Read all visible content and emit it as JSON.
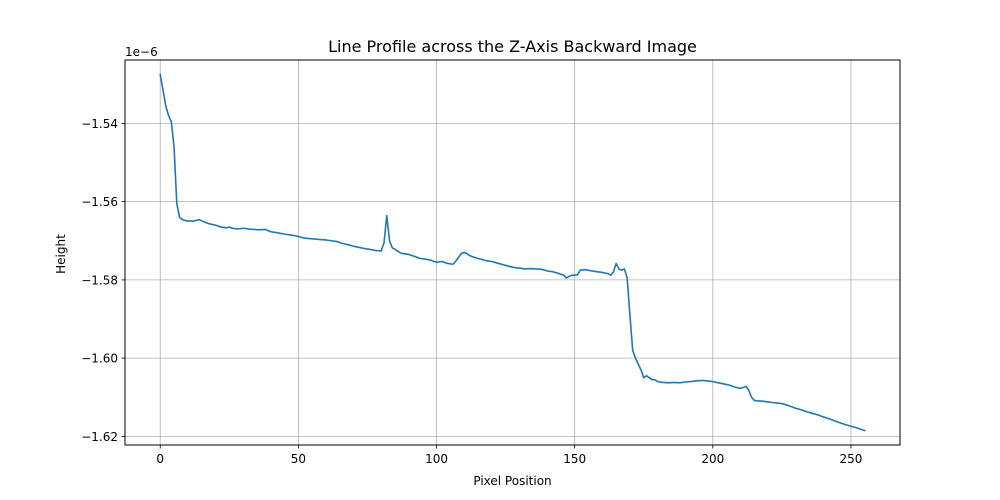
{
  "chart_data": {
    "type": "line",
    "title": "Line Profile across the Z-Axis Backward Image",
    "xlabel": "Pixel Position",
    "ylabel": "Height",
    "y_offset_label": "1e−6",
    "xlim": [
      -12.75,
      267.75
    ],
    "ylim": [
      -1.6222,
      -1.5238
    ],
    "grid": true,
    "x_ticks": [
      0,
      50,
      100,
      150,
      200,
      250
    ],
    "x_tick_labels": [
      "0",
      "50",
      "100",
      "150",
      "200",
      "250"
    ],
    "y_ticks": [
      -1.54,
      -1.56,
      -1.58,
      -1.6,
      -1.62
    ],
    "y_tick_labels": [
      "−1.54",
      "−1.56",
      "−1.58",
      "−1.60",
      "−1.62"
    ],
    "series": [
      {
        "color": "#1f77b4",
        "points": [
          [
            0,
            -1.5275
          ],
          [
            1,
            -1.5315
          ],
          [
            2,
            -1.5355
          ],
          [
            3,
            -1.538
          ],
          [
            4,
            -1.5395
          ],
          [
            5,
            -1.546
          ],
          [
            6,
            -1.5605
          ],
          [
            7,
            -1.564
          ],
          [
            8,
            -1.5646
          ],
          [
            9,
            -1.5648
          ],
          [
            10,
            -1.565
          ],
          [
            11,
            -1.5649
          ],
          [
            12,
            -1.565
          ],
          [
            13,
            -1.5648
          ],
          [
            14,
            -1.5646
          ],
          [
            15,
            -1.5649
          ],
          [
            16,
            -1.5652
          ],
          [
            17,
            -1.5655
          ],
          [
            18,
            -1.5657
          ],
          [
            20,
            -1.566
          ],
          [
            22,
            -1.5665
          ],
          [
            24,
            -1.5667
          ],
          [
            25,
            -1.5665
          ],
          [
            26,
            -1.5668
          ],
          [
            28,
            -1.567
          ],
          [
            30,
            -1.5668
          ],
          [
            32,
            -1.567
          ],
          [
            34,
            -1.5671
          ],
          [
            36,
            -1.5672
          ],
          [
            38,
            -1.5671
          ],
          [
            40,
            -1.5677
          ],
          [
            42,
            -1.5679
          ],
          [
            45,
            -1.5683
          ],
          [
            48,
            -1.5686
          ],
          [
            50,
            -1.5689
          ],
          [
            52,
            -1.5693
          ],
          [
            55,
            -1.5695
          ],
          [
            58,
            -1.5697
          ],
          [
            60,
            -1.5698
          ],
          [
            62,
            -1.57
          ],
          [
            64,
            -1.5702
          ],
          [
            66,
            -1.5707
          ],
          [
            68,
            -1.571
          ],
          [
            70,
            -1.5714
          ],
          [
            72,
            -1.5717
          ],
          [
            74,
            -1.572
          ],
          [
            76,
            -1.5722
          ],
          [
            78,
            -1.5725
          ],
          [
            80,
            -1.5726
          ],
          [
            81,
            -1.5705
          ],
          [
            82,
            -1.5636
          ],
          [
            83,
            -1.57
          ],
          [
            84,
            -1.5718
          ],
          [
            85,
            -1.5722
          ],
          [
            86,
            -1.5727
          ],
          [
            87,
            -1.5731
          ],
          [
            88,
            -1.5733
          ],
          [
            90,
            -1.5735
          ],
          [
            92,
            -1.574
          ],
          [
            94,
            -1.5745
          ],
          [
            96,
            -1.5747
          ],
          [
            98,
            -1.575
          ],
          [
            100,
            -1.5755
          ],
          [
            102,
            -1.5753
          ],
          [
            104,
            -1.5758
          ],
          [
            106,
            -1.576
          ],
          [
            107,
            -1.5752
          ],
          [
            108,
            -1.5742
          ],
          [
            109,
            -1.5732
          ],
          [
            110,
            -1.573
          ],
          [
            111,
            -1.5733
          ],
          [
            112,
            -1.5738
          ],
          [
            114,
            -1.5743
          ],
          [
            116,
            -1.5747
          ],
          [
            118,
            -1.5751
          ],
          [
            120,
            -1.5753
          ],
          [
            122,
            -1.5757
          ],
          [
            124,
            -1.5761
          ],
          [
            126,
            -1.5765
          ],
          [
            128,
            -1.5768
          ],
          [
            130,
            -1.577
          ],
          [
            132,
            -1.5772
          ],
          [
            134,
            -1.5771
          ],
          [
            136,
            -1.5772
          ],
          [
            138,
            -1.5773
          ],
          [
            140,
            -1.5777
          ],
          [
            142,
            -1.5779
          ],
          [
            144,
            -1.5783
          ],
          [
            146,
            -1.5788
          ],
          [
            147,
            -1.5795
          ],
          [
            148,
            -1.5791
          ],
          [
            149,
            -1.5788
          ],
          [
            150,
            -1.5788
          ],
          [
            151,
            -1.5787
          ],
          [
            152,
            -1.5775
          ],
          [
            154,
            -1.5774
          ],
          [
            156,
            -1.5777
          ],
          [
            158,
            -1.5779
          ],
          [
            160,
            -1.5781
          ],
          [
            162,
            -1.5784
          ],
          [
            163,
            -1.5788
          ],
          [
            164,
            -1.578
          ],
          [
            165,
            -1.5758
          ],
          [
            166,
            -1.5772
          ],
          [
            167,
            -1.5775
          ],
          [
            168,
            -1.5772
          ],
          [
            169,
            -1.5795
          ],
          [
            170,
            -1.589
          ],
          [
            171,
            -1.598
          ],
          [
            172,
            -1.6
          ],
          [
            173,
            -1.6015
          ],
          [
            174,
            -1.603
          ],
          [
            175,
            -1.605
          ],
          [
            176,
            -1.6045
          ],
          [
            177,
            -1.605
          ],
          [
            178,
            -1.6055
          ],
          [
            179,
            -1.6055
          ],
          [
            180,
            -1.606
          ],
          [
            182,
            -1.6062
          ],
          [
            184,
            -1.6063
          ],
          [
            186,
            -1.6062
          ],
          [
            188,
            -1.6063
          ],
          [
            190,
            -1.6061
          ],
          [
            192,
            -1.606
          ],
          [
            194,
            -1.6058
          ],
          [
            196,
            -1.6057
          ],
          [
            198,
            -1.6058
          ],
          [
            200,
            -1.606
          ],
          [
            202,
            -1.6063
          ],
          [
            204,
            -1.6066
          ],
          [
            206,
            -1.6069
          ],
          [
            208,
            -1.6074
          ],
          [
            209,
            -1.6076
          ],
          [
            210,
            -1.6077
          ],
          [
            211,
            -1.6075
          ],
          [
            212,
            -1.6072
          ],
          [
            213,
            -1.6082
          ],
          [
            214,
            -1.61
          ],
          [
            215,
            -1.6108
          ],
          [
            216,
            -1.6109
          ],
          [
            218,
            -1.611
          ],
          [
            220,
            -1.6112
          ],
          [
            222,
            -1.6114
          ],
          [
            224,
            -1.6115
          ],
          [
            226,
            -1.6118
          ],
          [
            228,
            -1.6123
          ],
          [
            230,
            -1.6128
          ],
          [
            232,
            -1.6132
          ],
          [
            234,
            -1.6137
          ],
          [
            236,
            -1.6141
          ],
          [
            238,
            -1.6145
          ],
          [
            240,
            -1.615
          ],
          [
            242,
            -1.6155
          ],
          [
            244,
            -1.616
          ],
          [
            246,
            -1.6165
          ],
          [
            248,
            -1.617
          ],
          [
            250,
            -1.6174
          ],
          [
            252,
            -1.6178
          ],
          [
            254,
            -1.6183
          ],
          [
            255,
            -1.6185
          ]
        ]
      }
    ]
  }
}
